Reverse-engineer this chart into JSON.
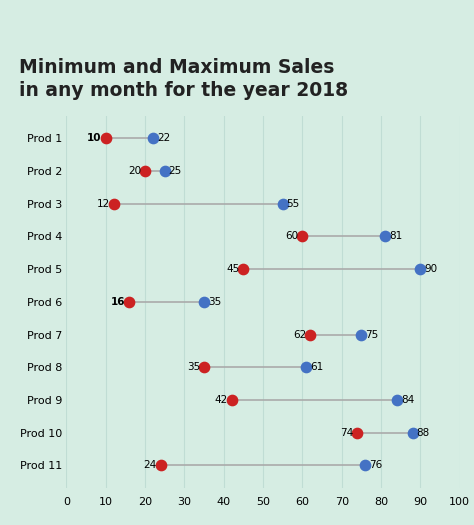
{
  "title": "Minimum and Maximum Sales\nin any month for the year 2018",
  "products": [
    "Prod 1",
    "Prod 2",
    "Prod 3",
    "Prod 4",
    "Prod 5",
    "Prod 6",
    "Prod 7",
    "Prod 8",
    "Prod 9",
    "Prod 10",
    "Prod 11"
  ],
  "min_vals": [
    10,
    20,
    12,
    60,
    45,
    16,
    62,
    35,
    42,
    74,
    24
  ],
  "max_vals": [
    22,
    25,
    55,
    81,
    90,
    35,
    75,
    61,
    84,
    88,
    76
  ],
  "bold_labels": [
    "Prod 1",
    "Prod 6"
  ],
  "min_color": "#cc2222",
  "max_color": "#4472c4",
  "line_color": "#aaaaaa",
  "background_color": "#d6ede3",
  "xlim": [
    0,
    100
  ],
  "xticks": [
    0,
    10,
    20,
    30,
    40,
    50,
    60,
    70,
    80,
    90,
    100
  ],
  "dot_size": 55,
  "line_width": 1.2,
  "title_fontsize": 13.5,
  "ylabel_fontsize": 8,
  "xlabel_fontsize": 8,
  "annot_fontsize": 7.5,
  "grid_color": "#c0ddd4",
  "title_color": "#222222"
}
